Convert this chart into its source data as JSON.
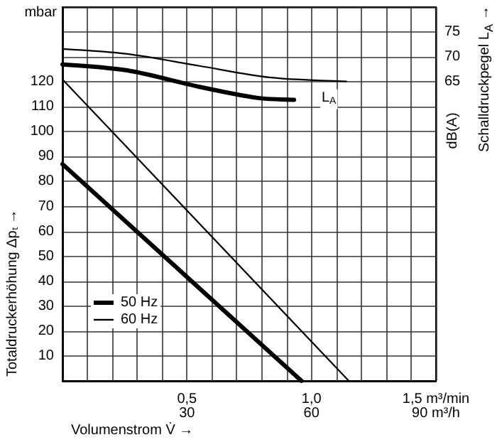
{
  "chart_data": {
    "type": "line",
    "xlabel": "Volumenstrom V̇ →",
    "ylabel": "Totaldruckerhöhung Δpₜ →",
    "y2label": "Schalldruckpegel L$_{A}$ →",
    "annotations": [
      "mbar",
      "dB(A)",
      {
        "text": "L$_{A}$",
        "x": 1.07,
        "y": 113
      }
    ],
    "series": [
      {
        "name": "50 Hz",
        "color": "#000000",
        "x": [
          0,
          0.96
        ],
        "values": [
          87,
          0
        ]
      },
      {
        "name": "60 Hz",
        "color": "#000000",
        "x": [
          0,
          1.15
        ],
        "values": [
          121,
          0
        ]
      },
      {
        "color": "#000000",
        "axis": "y2",
        "x": [
          0,
          0.26,
          0.55,
          0.78,
          0.93
        ],
        "values": [
          68.5,
          67.3,
          64.0,
          61.8,
          61.4
        ]
      },
      {
        "color": "#000000",
        "axis": "y2",
        "x": [
          0,
          0.26,
          0.55,
          0.83,
          1.14
        ],
        "values": [
          71.6,
          70.6,
          68.2,
          65.9,
          65.1
        ]
      }
    ],
    "xlim": [
      0,
      1.5
    ],
    "xticks": [
      {
        "value": 0,
        "label": null
      },
      {
        "value": 0.1,
        "label": null
      },
      {
        "value": 0.2,
        "label": null
      },
      {
        "value": 0.3,
        "label": null
      },
      {
        "value": 0.4,
        "label": null
      },
      {
        "value": 0.5,
        "label": "0,5"
      },
      {
        "value": 0.6,
        "label": null
      },
      {
        "value": 0.7,
        "label": null
      },
      {
        "value": 0.8,
        "label": null
      },
      {
        "value": 0.9,
        "label": null
      },
      {
        "value": 1.0,
        "label": "1,0"
      },
      {
        "value": 1.1,
        "label": null
      },
      {
        "value": 1.2,
        "label": null
      },
      {
        "value": 1.3,
        "label": null
      },
      {
        "value": 1.4,
        "label": null
      },
      {
        "value": 1.5,
        "label": "1,5 m³/min"
      }
    ],
    "x2lim": [
      0,
      90
    ],
    "x2ticks": [
      30,
      60,
      {
        "value": 90,
        "label": "90 m³/h"
      }
    ],
    "ylim": [
      0,
      150
    ],
    "yticks": [
      {
        "value": 0,
        "label": null
      },
      10,
      20,
      30,
      40,
      50,
      60,
      70,
      80,
      90,
      100,
      110,
      120,
      {
        "value": 130,
        "label": null
      },
      {
        "value": 140,
        "label": null
      },
      {
        "value": 150,
        "label": null
      }
    ],
    "y2lim": [
      5,
      80
    ],
    "y2ticks": [
      65,
      70,
      75
    ],
    "grid": true,
    "legend": "bottom left",
    "marker": "none",
    "line_style": "solid"
  }
}
